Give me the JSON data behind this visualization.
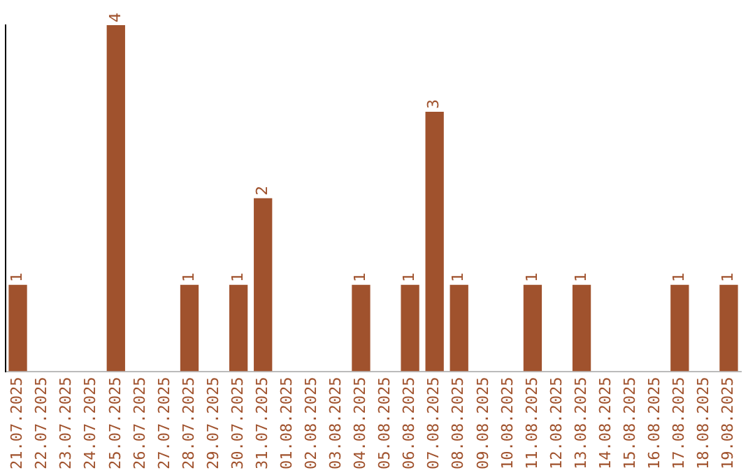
{
  "chart_data": {
    "type": "bar",
    "categories": [
      "21.07.2025",
      "22.07.2025",
      "23.07.2025",
      "24.07.2025",
      "25.07.2025",
      "26.07.2025",
      "27.07.2025",
      "28.07.2025",
      "29.07.2025",
      "30.07.2025",
      "31.07.2025",
      "01.08.2025",
      "02.08.2025",
      "03.08.2025",
      "04.08.2025",
      "05.08.2025",
      "06.08.2025",
      "07.08.2025",
      "08.08.2025",
      "09.08.2025",
      "10.08.2025",
      "11.08.2025",
      "12.08.2025",
      "13.08.2025",
      "14.08.2025",
      "15.08.2025",
      "16.08.2025",
      "17.08.2025",
      "18.08.2025",
      "19.08.2025"
    ],
    "values": [
      1,
      0,
      0,
      0,
      4,
      0,
      0,
      1,
      0,
      1,
      2,
      0,
      0,
      0,
      1,
      0,
      1,
      3,
      1,
      0,
      0,
      1,
      0,
      1,
      0,
      0,
      0,
      1,
      0,
      1
    ],
    "value_labels": [
      "1",
      null,
      null,
      null,
      "4",
      null,
      null,
      "1",
      null,
      "1",
      "2",
      null,
      null,
      null,
      "1",
      null,
      "1",
      "3",
      "1",
      null,
      null,
      "1",
      null,
      "1",
      null,
      null,
      null,
      "1",
      null,
      "1"
    ],
    "color": "#a0522d",
    "grid": false,
    "legend": false,
    "tick_labels": "x"
  }
}
